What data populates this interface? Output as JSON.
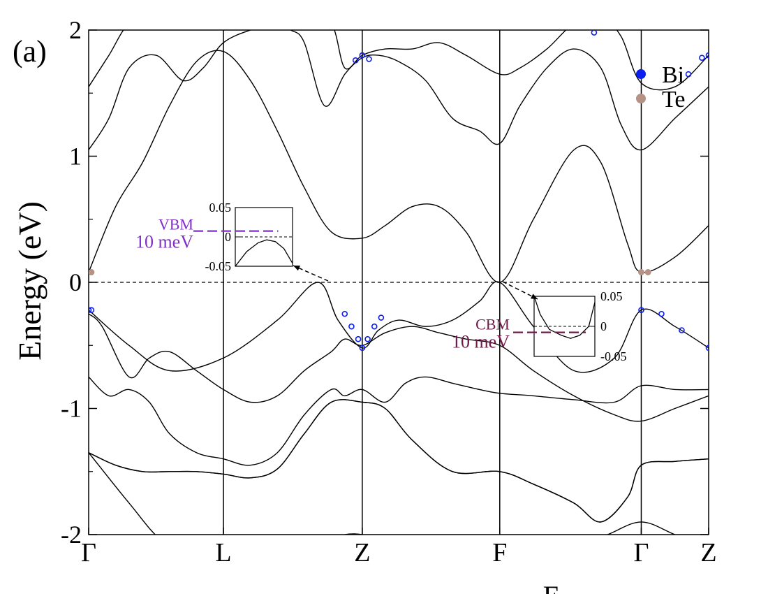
{
  "chart_data": {
    "type": "line",
    "panel_label": "(a)",
    "ylabel": "Energy (eV)",
    "ylim": [
      -2,
      2
    ],
    "yticks": [
      {
        "value": -2,
        "label": "-2"
      },
      {
        "value": -1,
        "label": "-1"
      },
      {
        "value": 0,
        "label": "0"
      },
      {
        "value": 1,
        "label": "1"
      },
      {
        "value": 2,
        "label": "2"
      }
    ],
    "kpoints": [
      "Γ",
      "L",
      "Z",
      "F",
      "Γ",
      "Z"
    ],
    "kpoint_positions": [
      0,
      1,
      2.03,
      3.05,
      4.1,
      4.6
    ],
    "fermi_level": 0,
    "partial_xlabel": "E",
    "legend": {
      "placement": "top-right",
      "entries": [
        {
          "name": "Bi",
          "color": "#0a1ef0"
        },
        {
          "name": "Te",
          "color": "#b49286"
        }
      ]
    },
    "colors": {
      "bands": "#000000",
      "bi": "#0a1ef0",
      "te": "#b49286",
      "vbm_marker": "#8030c8",
      "cbm_marker": "#701848"
    },
    "bands": [
      {
        "name": "b1",
        "x": [
          0,
          0.3,
          0.55,
          0.8,
          1.0,
          1.3,
          1.6,
          1.8,
          1.9,
          2.03,
          2.2,
          2.5,
          2.8,
          3.05,
          3.3,
          3.6,
          3.85,
          4.1,
          4.35,
          4.6
        ],
        "y": [
          -1.35,
          -1.75,
          -2.05,
          -2.1,
          -2.1,
          -2.1,
          -2.1,
          -2.05,
          -2.0,
          -2.0,
          -2.05,
          -2.1,
          -2.1,
          -2.1,
          -2.1,
          -2.1,
          -2.0,
          -1.9,
          -2.0,
          -2.1
        ]
      },
      {
        "name": "b2",
        "x": [
          0,
          0.2,
          0.4,
          0.6,
          0.8,
          1.0,
          1.2,
          1.4,
          1.6,
          1.8,
          2.03,
          2.2,
          2.4,
          2.7,
          3.05,
          3.3,
          3.6,
          3.8,
          4.0,
          4.1,
          4.35,
          4.6
        ],
        "y": [
          -1.35,
          -1.45,
          -1.5,
          -1.5,
          -1.5,
          -1.52,
          -1.55,
          -1.48,
          -1.2,
          -0.95,
          -0.95,
          -1.0,
          -1.25,
          -1.5,
          -1.5,
          -1.6,
          -1.75,
          -1.9,
          -1.7,
          -1.45,
          -1.42,
          -1.4
        ]
      },
      {
        "name": "b3",
        "x": [
          0,
          0.2,
          0.4,
          0.6,
          0.8,
          1.0,
          1.2,
          1.4,
          1.6,
          1.8,
          2.03,
          2.2,
          2.4,
          2.7,
          3.05,
          3.3,
          3.6,
          3.8,
          4.0,
          4.1,
          4.35,
          4.6
        ],
        "y": [
          -1.35,
          -1.45,
          -1.5,
          -1.5,
          -1.5,
          -1.52,
          -1.55,
          -1.48,
          -1.2,
          -0.95,
          -0.95,
          -1.0,
          -1.25,
          -1.5,
          -1.5,
          -1.6,
          -1.75,
          -1.9,
          -1.7,
          -1.45,
          -1.42,
          -1.4
        ]
      },
      {
        "name": "b4",
        "x": [
          0,
          0.15,
          0.3,
          0.45,
          0.6,
          0.8,
          1.0,
          1.2,
          1.4,
          1.6,
          1.8,
          1.9,
          2.03,
          2.2,
          2.35,
          2.5,
          2.7,
          2.9,
          3.05,
          3.3,
          3.6,
          3.9,
          4.1,
          4.35,
          4.6
        ],
        "y": [
          -0.75,
          -0.9,
          -0.85,
          -0.95,
          -1.2,
          -1.35,
          -1.4,
          -1.45,
          -1.35,
          -1.05,
          -0.85,
          -0.9,
          -0.85,
          -0.95,
          -0.8,
          -0.75,
          -0.8,
          -0.85,
          -0.88,
          -0.9,
          -0.93,
          -0.95,
          -0.82,
          -0.85,
          -0.85
        ]
      },
      {
        "name": "b5",
        "x": [
          0,
          0.1,
          0.3,
          0.45,
          0.6,
          0.8,
          1.0,
          1.2,
          1.4,
          1.6,
          1.8,
          1.9,
          2.03,
          2.2,
          2.4,
          2.6,
          2.8,
          3.05,
          3.3,
          3.6,
          3.9,
          4.1,
          4.35,
          4.6
        ],
        "y": [
          -0.25,
          -0.35,
          -0.75,
          -0.6,
          -0.55,
          -0.7,
          -0.85,
          -0.95,
          -0.9,
          -0.7,
          -0.55,
          -0.45,
          -0.5,
          -0.4,
          -0.35,
          -0.4,
          -0.45,
          -0.5,
          -0.7,
          -0.9,
          -1.05,
          -1.1,
          -1.0,
          -0.9
        ]
      },
      {
        "name": "b6",
        "x": [
          0,
          0.3,
          0.6,
          1.0,
          1.4,
          1.7,
          1.85,
          2.03,
          2.15,
          2.3,
          2.5,
          2.7,
          2.9,
          3.05,
          3.3,
          3.6,
          3.9,
          4.1,
          4.35,
          4.6
        ],
        "y": [
          -0.22,
          -0.5,
          -0.7,
          -0.6,
          -0.3,
          0.0,
          -0.3,
          -0.52,
          -0.38,
          -0.3,
          -0.35,
          -0.3,
          -0.15,
          0.0,
          -0.35,
          -0.7,
          -0.6,
          -0.22,
          -0.35,
          -0.52
        ]
      },
      {
        "name": "b7",
        "x": [
          0,
          0.2,
          0.4,
          0.6,
          0.8,
          1.0,
          1.2,
          1.4,
          1.6,
          1.8,
          2.03,
          2.2,
          2.4,
          2.6,
          2.8,
          3.05,
          3.3,
          3.6,
          3.8,
          4.0,
          4.1,
          4.35,
          4.6
        ],
        "y": [
          0.08,
          0.6,
          0.95,
          1.4,
          1.75,
          1.83,
          1.6,
          1.2,
          0.75,
          0.4,
          0.35,
          0.45,
          0.6,
          0.6,
          0.4,
          0.0,
          0.5,
          1.05,
          0.95,
          0.3,
          0.08,
          0.2,
          0.45
        ]
      },
      {
        "name": "b8",
        "x": [
          0,
          0.15,
          0.3,
          0.5,
          0.7,
          0.85,
          1.0,
          1.2,
          1.4,
          1.5,
          1.6,
          1.75,
          1.9,
          2.03,
          2.15,
          2.3,
          2.5,
          2.7,
          2.9,
          3.05,
          3.2,
          3.4,
          3.6,
          3.8,
          3.95,
          4.1,
          4.35,
          4.6
        ],
        "y": [
          1.05,
          1.3,
          1.7,
          1.8,
          1.6,
          1.7,
          1.9,
          2.0,
          2.05,
          2.0,
          1.9,
          1.4,
          1.65,
          1.78,
          1.8,
          1.75,
          1.6,
          1.3,
          1.2,
          1.1,
          1.4,
          1.7,
          1.85,
          1.7,
          1.25,
          1.05,
          1.3,
          1.55
        ]
      },
      {
        "name": "b9",
        "x": [
          0,
          0.15,
          0.3,
          0.5,
          0.7,
          0.85,
          1.0,
          1.2,
          1.4,
          1.6,
          1.8,
          1.9,
          2.03,
          2.2,
          2.4,
          2.6,
          2.8,
          3.05,
          3.2,
          3.4,
          3.6,
          3.8,
          3.95,
          4.1,
          4.35,
          4.6
        ],
        "y": [
          1.55,
          1.8,
          2.05,
          2.1,
          2.1,
          2.1,
          2.1,
          2.1,
          2.1,
          2.1,
          2.05,
          1.7,
          1.8,
          1.85,
          1.85,
          1.9,
          1.8,
          1.65,
          1.7,
          1.85,
          2.05,
          2.1,
          1.95,
          1.58,
          1.55,
          1.8
        ]
      }
    ],
    "bi_projection": [
      {
        "x": 0,
        "y": -0.22
      },
      {
        "x": 0.02,
        "y": -0.22
      },
      {
        "x": 1.9,
        "y": -0.25
      },
      {
        "x": 1.95,
        "y": -0.35
      },
      {
        "x": 2.0,
        "y": -0.45
      },
      {
        "x": 2.03,
        "y": -0.52
      },
      {
        "x": 2.07,
        "y": -0.45
      },
      {
        "x": 2.12,
        "y": -0.35
      },
      {
        "x": 2.17,
        "y": -0.28
      },
      {
        "x": 1.98,
        "y": 1.76
      },
      {
        "x": 2.03,
        "y": 1.8
      },
      {
        "x": 2.08,
        "y": 1.77
      },
      {
        "x": 3.75,
        "y": 1.98
      },
      {
        "x": 4.1,
        "y": -0.22
      },
      {
        "x": 4.25,
        "y": -0.25
      },
      {
        "x": 4.4,
        "y": -0.38
      },
      {
        "x": 4.6,
        "y": -0.52
      },
      {
        "x": 4.45,
        "y": 1.65
      },
      {
        "x": 4.55,
        "y": 1.78
      },
      {
        "x": 4.6,
        "y": 1.8
      }
    ],
    "te_projection": [
      {
        "x": 0.02,
        "y": 0.08
      },
      {
        "x": 4.1,
        "y": 0.08
      },
      {
        "x": 4.15,
        "y": 0.08
      }
    ],
    "insets": [
      {
        "name": "vbm-inset",
        "yticks": [
          {
            "value": 0.05,
            "label": "0.05"
          },
          {
            "value": 0,
            "label": "0"
          },
          {
            "value": -0.05,
            "label": "-0.05"
          }
        ],
        "ylim": [
          -0.05,
          0.05
        ],
        "marker_label": "VBM",
        "marker_value_label": "10 meV",
        "marker_y": 0.01,
        "curve": [
          [
            0,
            -0.05
          ],
          [
            0.2,
            -0.025
          ],
          [
            0.4,
            -0.01
          ],
          [
            0.55,
            -0.005
          ],
          [
            0.7,
            -0.008
          ],
          [
            0.85,
            -0.02
          ],
          [
            1.0,
            -0.045
          ]
        ]
      },
      {
        "name": "cbm-inset",
        "yticks": [
          {
            "value": 0.05,
            "label": "0.05"
          },
          {
            "value": 0,
            "label": "0"
          },
          {
            "value": -0.05,
            "label": "-0.05"
          }
        ],
        "ylim": [
          -0.05,
          0.05
        ],
        "marker_label": "CBM",
        "marker_value_label": "10 meV",
        "marker_y": -0.01,
        "curve": [
          [
            0,
            0.05
          ],
          [
            0.1,
            0.02
          ],
          [
            0.25,
            -0.005
          ],
          [
            0.45,
            -0.015
          ],
          [
            0.6,
            -0.02
          ],
          [
            0.75,
            -0.015
          ],
          [
            0.9,
            0.0
          ],
          [
            1.0,
            0.04
          ]
        ]
      }
    ]
  }
}
